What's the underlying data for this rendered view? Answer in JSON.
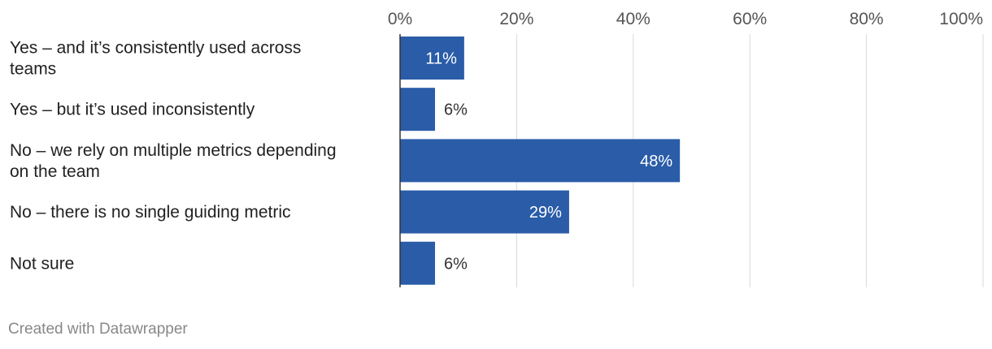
{
  "chart_data": {
    "type": "bar",
    "orientation": "horizontal",
    "categories": [
      [
        "Yes – and it’s consistently used across",
        "teams"
      ],
      [
        "Yes – but it’s used inconsistently"
      ],
      [
        "No – we rely on multiple metrics depending",
        "on the team"
      ],
      [
        "No – there is no single guiding metric"
      ],
      [
        "Not sure"
      ]
    ],
    "values": [
      11,
      6,
      48,
      29,
      6
    ],
    "value_labels": [
      "11%",
      "6%",
      "48%",
      "29%",
      "6%"
    ],
    "xlim": [
      0,
      100
    ],
    "ticks": [
      0,
      20,
      40,
      60,
      80,
      100
    ],
    "tick_labels": [
      "0%",
      "20%",
      "40%",
      "60%",
      "80%",
      "100%"
    ],
    "grid": true,
    "title": "",
    "xlabel": "",
    "ylabel": ""
  },
  "colors": {
    "bar": "#2a5ca8",
    "grid": "#d9d9d9",
    "axis": "#333333",
    "label_inside": "#ffffff",
    "label_outside": "#333333"
  },
  "footer": {
    "credit": "Created with Datawrapper"
  }
}
